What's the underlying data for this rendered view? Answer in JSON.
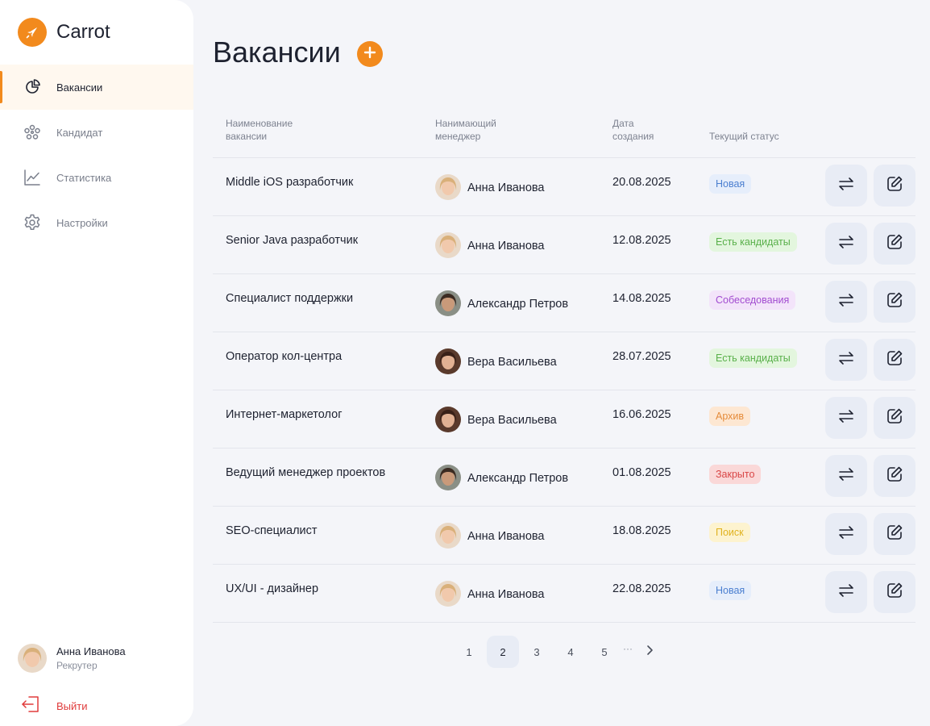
{
  "app": {
    "brand": "Carrot",
    "accent": "#f28a1d"
  },
  "sidebar": {
    "items": [
      {
        "label": "Вакансии",
        "icon": "vacancies-icon",
        "active": true
      },
      {
        "label": "Кандидат",
        "icon": "candidates-icon",
        "active": false
      },
      {
        "label": "Статистика",
        "icon": "chart-icon",
        "active": false
      },
      {
        "label": "Настройки",
        "icon": "gear-icon",
        "active": false
      }
    ],
    "profile": {
      "name": "Анна Иванова",
      "role": "Рекрутер"
    },
    "logout": "Выйти"
  },
  "main": {
    "title": "Вакансии",
    "columns": {
      "title": "Наименование вакансии",
      "manager": "Нанимающий менеджер",
      "date": "Дата создания",
      "status": "Текущий статус"
    },
    "rows": [
      {
        "title": "Middle iOS разработчик",
        "manager": "Анна Иванова",
        "date": "20.08.2025",
        "status": "Новая"
      },
      {
        "title": "Senior Java разработчик",
        "manager": "Анна Иванова",
        "date": "12.08.2025",
        "status": "Есть кандидаты"
      },
      {
        "title": "Специалист поддержки",
        "manager": "Александр Петров",
        "date": "14.08.2025",
        "status": "Собеседования"
      },
      {
        "title": "Оператор кол-центра",
        "manager": "Вера Васильева",
        "date": "28.07.2025",
        "status": "Есть кандидаты"
      },
      {
        "title": "Интернет-маркетолог",
        "manager": "Вера Васильева",
        "date": "16.06.2025",
        "status": "Архив"
      },
      {
        "title": "Ведущий менеджер проектов",
        "manager": "Александр Петров",
        "date": "01.08.2025",
        "status": "Закрыто"
      },
      {
        "title": "SEO-специалист",
        "manager": "Анна Иванова",
        "date": "18.08.2025",
        "status": "Поиск"
      },
      {
        "title": "UX/UI - дизайнер",
        "manager": "Анна Иванова",
        "date": "22.08.2025",
        "status": "Новая"
      }
    ],
    "status_colors": {
      "Новая": {
        "bg": "#e6eefb",
        "fg": "#4b7fd0"
      },
      "Есть кандидаты": {
        "bg": "#e3f6de",
        "fg": "#59b04a"
      },
      "Собеседования": {
        "bg": "#f3e4fa",
        "fg": "#a24cd0"
      },
      "Архив": {
        "bg": "#fde7d2",
        "fg": "#e58b3a"
      },
      "Закрыто": {
        "bg": "#fad8d8",
        "fg": "#d94646"
      },
      "Поиск": {
        "bg": "#fdf3cf",
        "fg": "#e0b21f"
      }
    }
  },
  "pagination": {
    "pages": [
      "1",
      "2",
      "3",
      "4",
      "5"
    ],
    "current": "2",
    "ellipsis": "···"
  }
}
